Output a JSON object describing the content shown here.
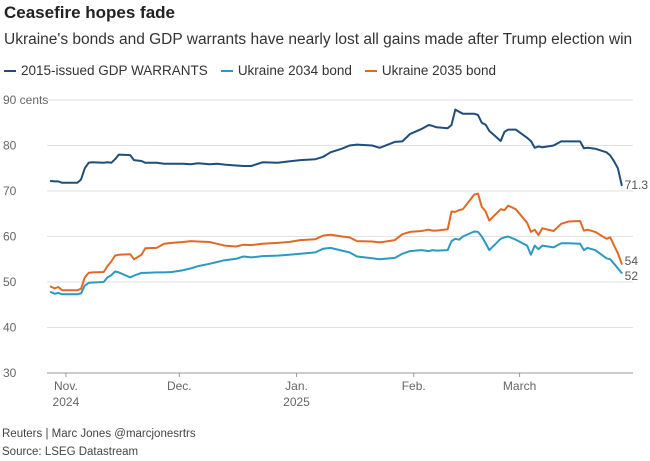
{
  "header": {
    "title": "Ceasefire hopes fade",
    "subtitle": "Ukraine's bonds and GDP warrants have nearly lost all gains made after Trump election win"
  },
  "footer": {
    "credit": "Reuters | Marc Jones @marcjonesrtrs",
    "source": "Source: LSEG Datastream"
  },
  "chart_data": {
    "type": "line",
    "title": "Ceasefire hopes fade",
    "subtitle": "Ukraine's bonds and GDP warrants have nearly lost all gains made after Trump election win",
    "ylim": [
      30,
      90
    ],
    "yticks": [
      30,
      40,
      50,
      60,
      70,
      80,
      90
    ],
    "ytick_labels": [
      "30",
      "40",
      "50",
      "60",
      "70",
      "80",
      "90 cents"
    ],
    "xlim": [
      "2024-10-27",
      "2025-03-31"
    ],
    "xticks": [
      {
        "date": "2024-11-01",
        "label": "Nov.",
        "sublabel": "2024"
      },
      {
        "date": "2024-12-01",
        "label": "Dec.",
        "sublabel": ""
      },
      {
        "date": "2025-01-01",
        "label": "Jan.",
        "sublabel": "2025"
      },
      {
        "date": "2025-02-01",
        "label": "Feb.",
        "sublabel": ""
      },
      {
        "date": "2025-03-01",
        "label": "March",
        "sublabel": ""
      }
    ],
    "grid": true,
    "legend_position": "top",
    "series": [
      {
        "name": "2015-issued GDP WARRANTS",
        "color": "#1f4e79",
        "end_label": "71.3",
        "points": [
          [
            "2024-10-28",
            72.2
          ],
          [
            "2024-10-29",
            72.1
          ],
          [
            "2024-10-30",
            72.1
          ],
          [
            "2024-10-31",
            71.8
          ],
          [
            "2024-11-01",
            71.8
          ],
          [
            "2024-11-04",
            71.8
          ],
          [
            "2024-11-05",
            72.5
          ],
          [
            "2024-11-06",
            75.0
          ],
          [
            "2024-11-07",
            76.2
          ],
          [
            "2024-11-08",
            76.3
          ],
          [
            "2024-11-11",
            76.2
          ],
          [
            "2024-11-12",
            76.3
          ],
          [
            "2024-11-13",
            76.2
          ],
          [
            "2024-11-14",
            77.0
          ],
          [
            "2024-11-15",
            78.0
          ],
          [
            "2024-11-18",
            77.9
          ],
          [
            "2024-11-19",
            76.8
          ],
          [
            "2024-11-21",
            76.6
          ],
          [
            "2024-11-22",
            76.2
          ],
          [
            "2024-11-25",
            76.2
          ],
          [
            "2024-11-27",
            76.0
          ],
          [
            "2024-11-29",
            76.0
          ],
          [
            "2024-12-02",
            76.0
          ],
          [
            "2024-12-04",
            75.9
          ],
          [
            "2024-12-06",
            76.1
          ],
          [
            "2024-12-09",
            75.9
          ],
          [
            "2024-12-11",
            76.0
          ],
          [
            "2024-12-13",
            75.8
          ],
          [
            "2024-12-16",
            75.6
          ],
          [
            "2024-12-18",
            75.5
          ],
          [
            "2024-12-20",
            75.5
          ],
          [
            "2024-12-23",
            76.3
          ],
          [
            "2024-12-27",
            76.2
          ],
          [
            "2024-12-30",
            76.5
          ],
          [
            "2025-01-02",
            76.8
          ],
          [
            "2025-01-06",
            77.0
          ],
          [
            "2025-01-08",
            77.5
          ],
          [
            "2025-01-10",
            78.5
          ],
          [
            "2025-01-13",
            79.3
          ],
          [
            "2025-01-15",
            80.0
          ],
          [
            "2025-01-17",
            80.2
          ],
          [
            "2025-01-21",
            80.0
          ],
          [
            "2025-01-23",
            79.5
          ],
          [
            "2025-01-27",
            80.8
          ],
          [
            "2025-01-29",
            80.9
          ],
          [
            "2025-01-31",
            82.5
          ],
          [
            "2025-02-03",
            83.6
          ],
          [
            "2025-02-05",
            84.5
          ],
          [
            "2025-02-06",
            84.3
          ],
          [
            "2025-02-07",
            84.0
          ],
          [
            "2025-02-10",
            83.8
          ],
          [
            "2025-02-11",
            84.5
          ],
          [
            "2025-02-12",
            87.9
          ],
          [
            "2025-02-13",
            87.4
          ],
          [
            "2025-02-14",
            87.0
          ],
          [
            "2025-02-17",
            87.0
          ],
          [
            "2025-02-18",
            86.7
          ],
          [
            "2025-02-19",
            85.0
          ],
          [
            "2025-02-20",
            84.6
          ],
          [
            "2025-02-21",
            83.2
          ],
          [
            "2025-02-24",
            81.0
          ],
          [
            "2025-02-25",
            83.0
          ],
          [
            "2025-02-26",
            83.5
          ],
          [
            "2025-02-28",
            83.5
          ],
          [
            "2025-03-03",
            81.7
          ],
          [
            "2025-03-04",
            81.0
          ],
          [
            "2025-03-05",
            79.5
          ],
          [
            "2025-03-06",
            79.8
          ],
          [
            "2025-03-07",
            79.6
          ],
          [
            "2025-03-10",
            80.0
          ],
          [
            "2025-03-12",
            80.9
          ],
          [
            "2025-03-14",
            80.9
          ],
          [
            "2025-03-17",
            80.9
          ],
          [
            "2025-03-18",
            79.4
          ],
          [
            "2025-03-19",
            79.5
          ],
          [
            "2025-03-21",
            79.3
          ],
          [
            "2025-03-24",
            78.5
          ],
          [
            "2025-03-25",
            77.8
          ],
          [
            "2025-03-26",
            76.5
          ],
          [
            "2025-03-27",
            75.0
          ],
          [
            "2025-03-28",
            71.3
          ]
        ]
      },
      {
        "name": "Ukraine 2034 bond",
        "color": "#2b9ac2",
        "end_label": "52",
        "points": [
          [
            "2024-10-28",
            47.8
          ],
          [
            "2024-10-29",
            47.4
          ],
          [
            "2024-10-30",
            47.6
          ],
          [
            "2024-10-31",
            47.3
          ],
          [
            "2024-11-01",
            47.3
          ],
          [
            "2024-11-04",
            47.3
          ],
          [
            "2024-11-05",
            47.5
          ],
          [
            "2024-11-06",
            49.2
          ],
          [
            "2024-11-07",
            49.8
          ],
          [
            "2024-11-08",
            49.9
          ],
          [
            "2024-11-11",
            50.0
          ],
          [
            "2024-11-12",
            51.0
          ],
          [
            "2024-11-13",
            51.5
          ],
          [
            "2024-11-14",
            52.3
          ],
          [
            "2024-11-15",
            52.1
          ],
          [
            "2024-11-18",
            51.0
          ],
          [
            "2024-11-19",
            51.4
          ],
          [
            "2024-11-21",
            52.0
          ],
          [
            "2024-11-22",
            52.0
          ],
          [
            "2024-11-25",
            52.1
          ],
          [
            "2024-11-27",
            52.1
          ],
          [
            "2024-11-29",
            52.2
          ],
          [
            "2024-12-02",
            52.6
          ],
          [
            "2024-12-04",
            53.0
          ],
          [
            "2024-12-06",
            53.5
          ],
          [
            "2024-12-09",
            54.0
          ],
          [
            "2024-12-11",
            54.4
          ],
          [
            "2024-12-13",
            54.8
          ],
          [
            "2024-12-16",
            55.1
          ],
          [
            "2024-12-18",
            55.6
          ],
          [
            "2024-12-20",
            55.4
          ],
          [
            "2024-12-23",
            55.7
          ],
          [
            "2024-12-27",
            55.8
          ],
          [
            "2024-12-30",
            56.0
          ],
          [
            "2025-01-02",
            56.2
          ],
          [
            "2025-01-06",
            56.5
          ],
          [
            "2025-01-08",
            57.3
          ],
          [
            "2025-01-10",
            57.5
          ],
          [
            "2025-01-13",
            56.9
          ],
          [
            "2025-01-15",
            56.5
          ],
          [
            "2025-01-17",
            55.6
          ],
          [
            "2025-01-21",
            55.2
          ],
          [
            "2025-01-23",
            55.0
          ],
          [
            "2025-01-27",
            55.3
          ],
          [
            "2025-01-29",
            56.2
          ],
          [
            "2025-01-31",
            56.8
          ],
          [
            "2025-02-03",
            57.0
          ],
          [
            "2025-02-05",
            56.8
          ],
          [
            "2025-02-06",
            57.0
          ],
          [
            "2025-02-07",
            56.9
          ],
          [
            "2025-02-10",
            57.0
          ],
          [
            "2025-02-11",
            59.0
          ],
          [
            "2025-02-12",
            59.5
          ],
          [
            "2025-02-13",
            59.3
          ],
          [
            "2025-02-14",
            60.0
          ],
          [
            "2025-02-17",
            61.1
          ],
          [
            "2025-02-18",
            61.0
          ],
          [
            "2025-02-19",
            60.0
          ],
          [
            "2025-02-20",
            58.5
          ],
          [
            "2025-02-21",
            57.0
          ],
          [
            "2025-02-24",
            59.5
          ],
          [
            "2025-02-25",
            59.8
          ],
          [
            "2025-02-26",
            60.0
          ],
          [
            "2025-02-28",
            59.3
          ],
          [
            "2025-03-03",
            58.0
          ],
          [
            "2025-03-04",
            56.0
          ],
          [
            "2025-03-05",
            58.0
          ],
          [
            "2025-03-06",
            57.2
          ],
          [
            "2025-03-07",
            58.0
          ],
          [
            "2025-03-10",
            57.6
          ],
          [
            "2025-03-12",
            58.5
          ],
          [
            "2025-03-14",
            58.5
          ],
          [
            "2025-03-17",
            58.4
          ],
          [
            "2025-03-18",
            57.0
          ],
          [
            "2025-03-19",
            57.5
          ],
          [
            "2025-03-21",
            57.0
          ],
          [
            "2025-03-24",
            55.2
          ],
          [
            "2025-03-25",
            55.0
          ],
          [
            "2025-03-26",
            54.0
          ],
          [
            "2025-03-27",
            53.0
          ],
          [
            "2025-03-28",
            52.0
          ]
        ]
      },
      {
        "name": "Ukraine 2035 bond",
        "color": "#e06a24",
        "end_label": "54",
        "points": [
          [
            "2024-10-28",
            49.0
          ],
          [
            "2024-10-29",
            48.6
          ],
          [
            "2024-10-30",
            48.9
          ],
          [
            "2024-10-31",
            48.2
          ],
          [
            "2024-11-01",
            48.2
          ],
          [
            "2024-11-04",
            48.2
          ],
          [
            "2024-11-05",
            48.5
          ],
          [
            "2024-11-06",
            51.0
          ],
          [
            "2024-11-07",
            52.0
          ],
          [
            "2024-11-08",
            52.1
          ],
          [
            "2024-11-11",
            52.2
          ],
          [
            "2024-11-12",
            53.5
          ],
          [
            "2024-11-13",
            54.5
          ],
          [
            "2024-11-14",
            55.8
          ],
          [
            "2024-11-15",
            56.0
          ],
          [
            "2024-11-18",
            56.1
          ],
          [
            "2024-11-19",
            55.0
          ],
          [
            "2024-11-21",
            56.0
          ],
          [
            "2024-11-22",
            57.4
          ],
          [
            "2024-11-25",
            57.5
          ],
          [
            "2024-11-27",
            58.4
          ],
          [
            "2024-11-29",
            58.6
          ],
          [
            "2024-12-02",
            58.8
          ],
          [
            "2024-12-04",
            59.0
          ],
          [
            "2024-12-06",
            58.9
          ],
          [
            "2024-12-09",
            58.8
          ],
          [
            "2024-12-11",
            58.4
          ],
          [
            "2024-12-13",
            58.0
          ],
          [
            "2024-12-16",
            57.8
          ],
          [
            "2024-12-18",
            58.2
          ],
          [
            "2024-12-20",
            58.1
          ],
          [
            "2024-12-23",
            58.4
          ],
          [
            "2024-12-27",
            58.6
          ],
          [
            "2024-12-30",
            58.8
          ],
          [
            "2025-01-02",
            59.2
          ],
          [
            "2025-01-06",
            59.4
          ],
          [
            "2025-01-08",
            60.2
          ],
          [
            "2025-01-10",
            60.4
          ],
          [
            "2025-01-13",
            60.0
          ],
          [
            "2025-01-15",
            59.8
          ],
          [
            "2025-01-17",
            59.0
          ],
          [
            "2025-01-21",
            58.9
          ],
          [
            "2025-01-23",
            58.7
          ],
          [
            "2025-01-27",
            59.2
          ],
          [
            "2025-01-29",
            60.5
          ],
          [
            "2025-01-31",
            61.0
          ],
          [
            "2025-02-03",
            61.2
          ],
          [
            "2025-02-05",
            61.5
          ],
          [
            "2025-02-06",
            61.3
          ],
          [
            "2025-02-07",
            61.3
          ],
          [
            "2025-02-10",
            61.6
          ],
          [
            "2025-02-11",
            65.5
          ],
          [
            "2025-02-12",
            65.4
          ],
          [
            "2025-02-13",
            65.8
          ],
          [
            "2025-02-14",
            66.0
          ],
          [
            "2025-02-17",
            69.2
          ],
          [
            "2025-02-18",
            69.4
          ],
          [
            "2025-02-19",
            66.5
          ],
          [
            "2025-02-20",
            65.5
          ],
          [
            "2025-02-21",
            63.5
          ],
          [
            "2025-02-24",
            66.0
          ],
          [
            "2025-02-25",
            65.8
          ],
          [
            "2025-02-26",
            66.8
          ],
          [
            "2025-02-28",
            66.0
          ],
          [
            "2025-03-03",
            63.0
          ],
          [
            "2025-03-04",
            61.0
          ],
          [
            "2025-03-05",
            61.5
          ],
          [
            "2025-03-06",
            60.3
          ],
          [
            "2025-03-07",
            61.8
          ],
          [
            "2025-03-10",
            61.2
          ],
          [
            "2025-03-12",
            62.8
          ],
          [
            "2025-03-14",
            63.3
          ],
          [
            "2025-03-17",
            63.4
          ],
          [
            "2025-03-18",
            61.3
          ],
          [
            "2025-03-19",
            61.5
          ],
          [
            "2025-03-21",
            61.0
          ],
          [
            "2025-03-24",
            59.5
          ],
          [
            "2025-03-25",
            59.8
          ],
          [
            "2025-03-26",
            58.0
          ],
          [
            "2025-03-27",
            56.3
          ],
          [
            "2025-03-28",
            54.0
          ]
        ]
      }
    ]
  }
}
